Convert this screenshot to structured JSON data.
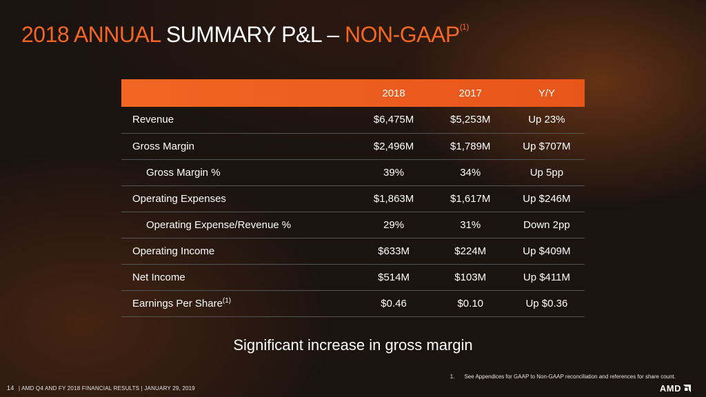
{
  "slide": {
    "title_part1": "2018 ANNUAL",
    "title_part2": " SUMMARY P&L – ",
    "title_part3": "NON-GAAP",
    "title_sup": "(1)",
    "colors": {
      "accent": "#f26522",
      "background": "#1b1310",
      "text": "#ffffff"
    }
  },
  "table": {
    "headers": [
      "",
      "2018",
      "2017",
      "Y/Y"
    ],
    "rows": [
      {
        "label": "Revenue",
        "v2018": "$6,475M",
        "v2017": "$5,253M",
        "yy": "Up 23%"
      },
      {
        "label": "Gross Margin",
        "v2018": "$2,496M",
        "v2017": "$1,789M",
        "yy": "Up $707M"
      },
      {
        "label": "Gross Margin %",
        "v2018": "39%",
        "v2017": "34%",
        "yy": "Up 5pp"
      },
      {
        "label": "Operating Expenses",
        "v2018": "$1,863M",
        "v2017": "$1,617M",
        "yy": "Up $246M"
      },
      {
        "label": "Operating Expense/Revenue %",
        "v2018": "29%",
        "v2017": "31%",
        "yy": "Down 2pp"
      },
      {
        "label": "Operating Income",
        "v2018": "$633M",
        "v2017": "$224M",
        "yy": "Up $409M"
      },
      {
        "label": "Net Income",
        "v2018": "$514M",
        "v2017": "$103M",
        "yy": "Up $411M"
      },
      {
        "label": "Earnings Per Share",
        "label_sup": "(1)",
        "v2018": "$0.46",
        "v2017": "$0.10",
        "yy": "Up $0.36"
      }
    ]
  },
  "tagline": "Significant increase in gross margin",
  "footnote": {
    "number": "1.",
    "text": "See Appendices for GAAP to Non-GAAP reconciliation and references for  share count."
  },
  "footer": {
    "page_number": "14",
    "text": "| AMD Q4 AND FY 2018 FINANCIAL RESULTS | JANUARY 29, 2019"
  },
  "logo": {
    "text": "AMD",
    "icon": "amd-arrow-icon"
  }
}
